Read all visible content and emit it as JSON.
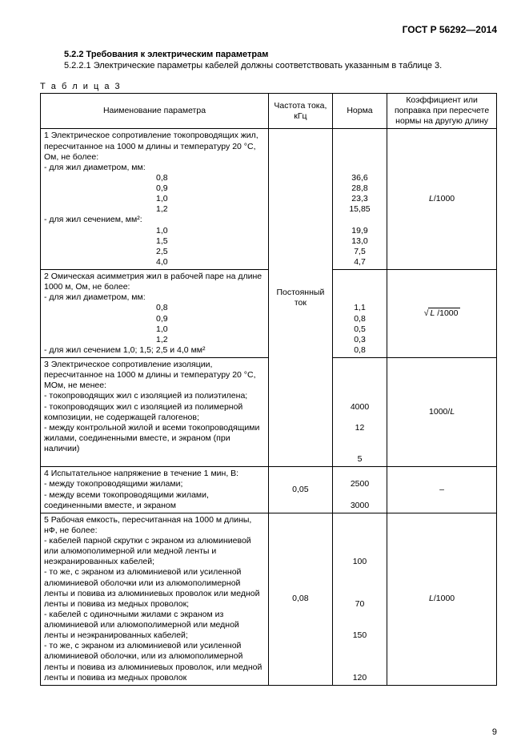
{
  "header": "ГОСТ Р 56292—2014",
  "section_title": "5.2.2 Требования к электрическим параметрам",
  "section_sub": "5.2.2.1 Электрические параметры кабелей должны соответствовать указанным в таблице 3.",
  "table_caption": "Т а б л и ц а   3",
  "columns": {
    "name": "Наименование параметра",
    "freq": "Частота тока, кГц",
    "norm": "Норма",
    "coef": "Коэффициент или поправка при пересчете нормы на другую длину"
  },
  "row1": {
    "title": "1 Электрическое сопротивление токопроводящих жил, пересчитанное на 1000 м длины и температуру 20 °С, Ом, не более:",
    "sub_diam": "- для жил диаметром, мм:",
    "d08": "0,8",
    "v08": "36,6",
    "d09": "0,9",
    "v09": "28,8",
    "d10": "1,0",
    "v10": "23,3",
    "d12": "1,2",
    "v12": "15,85",
    "sub_sect": "- для жил сечением, мм²:",
    "s10": "1,0",
    "sv10": "19,9",
    "s15": "1,5",
    "sv15": "13,0",
    "s25": "2,5",
    "sv25": "7,5",
    "s40": "4,0",
    "sv40": "4,7",
    "coef": "L/1000"
  },
  "row2": {
    "title": "2 Омическая асимметрия жил в рабочей паре на длине 1000 м, Ом, не более:",
    "sub_diam": "- для жил диаметром, мм:",
    "d08": "0,8",
    "v08": "1,1",
    "d09": "0,9",
    "v09": "0,8",
    "d10": "1,0",
    "v10": "0,5",
    "d12": "1,2",
    "v12": "0,3",
    "sect_line": "- для жил сечением 1,0; 1,5; 2,5 и 4,0 мм²",
    "sect_val": "0,8",
    "coef_inner": "L /1000"
  },
  "freq_merged": "Постоянный ток",
  "row3": {
    "title": "3 Электрическое сопротивление изоляции, пересчитанное на 1000 м длины и температуру 20 °С, МОм, не менее:",
    "l1": "- токопроводящих жил с изоляцией из полиэтилена;",
    "v1": "4000",
    "l2": "- токопроводящих жил с изоляцией из полимерной композиции, не содержащей галогенов;",
    "v2": "12",
    "l3": "- между контрольной жилой и всеми токопроводящими жилами, соединенными вместе, и экраном (при наличии)",
    "v3": "5",
    "coef": "1000/L"
  },
  "row4": {
    "title": "4 Испытательное напряжение в течение 1 мин, В:",
    "l1": "- между токопроводящими жилами;",
    "v1": "2500",
    "l2": "- между всеми токопроводящими жилами, соединенными вместе, и экраном",
    "v2": "3000",
    "freq": "0,05",
    "coef": "–"
  },
  "row5": {
    "title": "5 Рабочая емкость, пересчитанная на 1000 м длины, нФ, не более:",
    "l1": "- кабелей парной скрутки с экраном из алюминиевой или алюмополимерной или медной ленты и неэкранированных кабелей;",
    "v1": "100",
    "l2": "- то же, с экраном из алюминиевой или усиленной алюминиевой оболочки или из алюмополимерной ленты и повива из алюминиевых проволок или медной ленты и повива из медных проволок;",
    "v2": "70",
    "l3": "- кабелей с одиночными жилами с экраном из алюминиевой или алюмополимерной или медной ленты и неэкранированных кабелей;",
    "v3": "150",
    "l4": "- то же, с экраном из алюминиевой или усиленной алюминиевой оболочки, или из алюмополимерной ленты и повива из алюминиевых проволок, или медной ленты и повива из медных проволок",
    "v4": "120",
    "freq": "0,08",
    "coef": "L/1000"
  },
  "page_num": "9"
}
